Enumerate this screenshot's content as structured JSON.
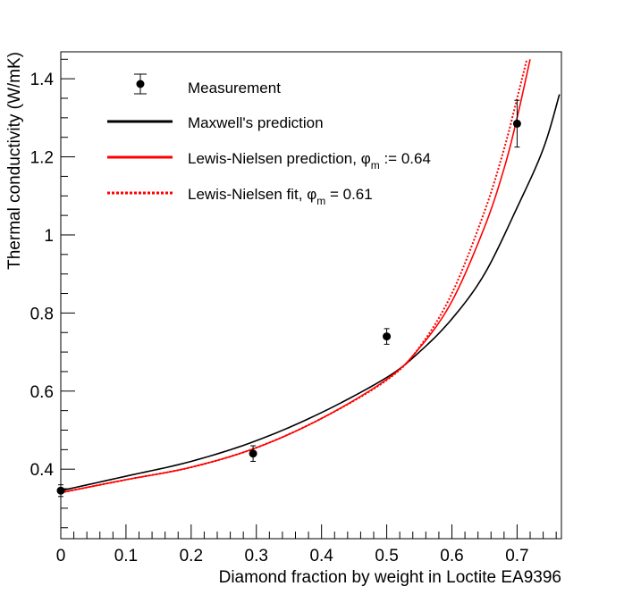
{
  "chart_data": {
    "type": "line",
    "title": "",
    "xlabel": "Diamond fraction by weight in Loctite EA9396",
    "ylabel": "Thermal conductivity (W/mK)",
    "xlim": [
      0,
      0.768
    ],
    "ylim": [
      0.222,
      1.469
    ],
    "xticks": [
      0,
      0.1,
      0.2,
      0.3,
      0.4,
      0.5,
      0.6,
      0.7
    ],
    "xtick_labels": [
      "0",
      "0.1",
      "0.2",
      "0.3",
      "0.4",
      "0.5",
      "0.6",
      "0.7"
    ],
    "yticks": [
      0.4,
      0.6,
      0.8,
      1.0,
      1.2,
      1.4
    ],
    "ytick_labels": [
      "0.4",
      "0.6",
      "0.8",
      "1",
      "1.2",
      "1.4"
    ],
    "grid": false,
    "legend_position": "top-left",
    "measurements": {
      "name": "Measurement",
      "x": [
        0,
        0.295,
        0.5,
        0.7
      ],
      "y": [
        0.345,
        0.44,
        0.74,
        1.285
      ],
      "yerr": [
        0.015,
        0.02,
        0.02,
        0.06
      ],
      "color": "#000000"
    },
    "series": [
      {
        "name": "Maxwell's prediction",
        "style": "solid",
        "color": "#000000",
        "x": [
          0,
          0.1,
          0.2,
          0.3,
          0.4,
          0.5,
          0.55,
          0.6,
          0.65,
          0.7,
          0.74,
          0.765
        ],
        "y": [
          0.345,
          0.382,
          0.42,
          0.473,
          0.545,
          0.635,
          0.7,
          0.785,
          0.9,
          1.07,
          1.22,
          1.36
        ]
      },
      {
        "name": "Lewis-Nielsen prediction, ",
        "phi_label": "φ",
        "phi_sub": "m",
        "suffix": " := 0.64",
        "style": "solid",
        "color": "#ff0000",
        "x": [
          0,
          0.1,
          0.2,
          0.3,
          0.4,
          0.5,
          0.55,
          0.6,
          0.65,
          0.68,
          0.7,
          0.72
        ],
        "y": [
          0.34,
          0.373,
          0.405,
          0.455,
          0.53,
          0.63,
          0.71,
          0.83,
          1.02,
          1.17,
          1.3,
          1.45
        ]
      },
      {
        "name": "Lewis-Nielsen fit, ",
        "phi_label": "φ",
        "phi_sub": "m",
        "suffix": " = 0.61",
        "style": "dotted",
        "color": "#ff0000",
        "x": [
          0,
          0.1,
          0.2,
          0.3,
          0.4,
          0.5,
          0.55,
          0.6,
          0.65,
          0.68,
          0.7,
          0.715
        ],
        "y": [
          0.34,
          0.373,
          0.405,
          0.455,
          0.53,
          0.628,
          0.712,
          0.85,
          1.06,
          1.22,
          1.35,
          1.45
        ]
      }
    ]
  }
}
